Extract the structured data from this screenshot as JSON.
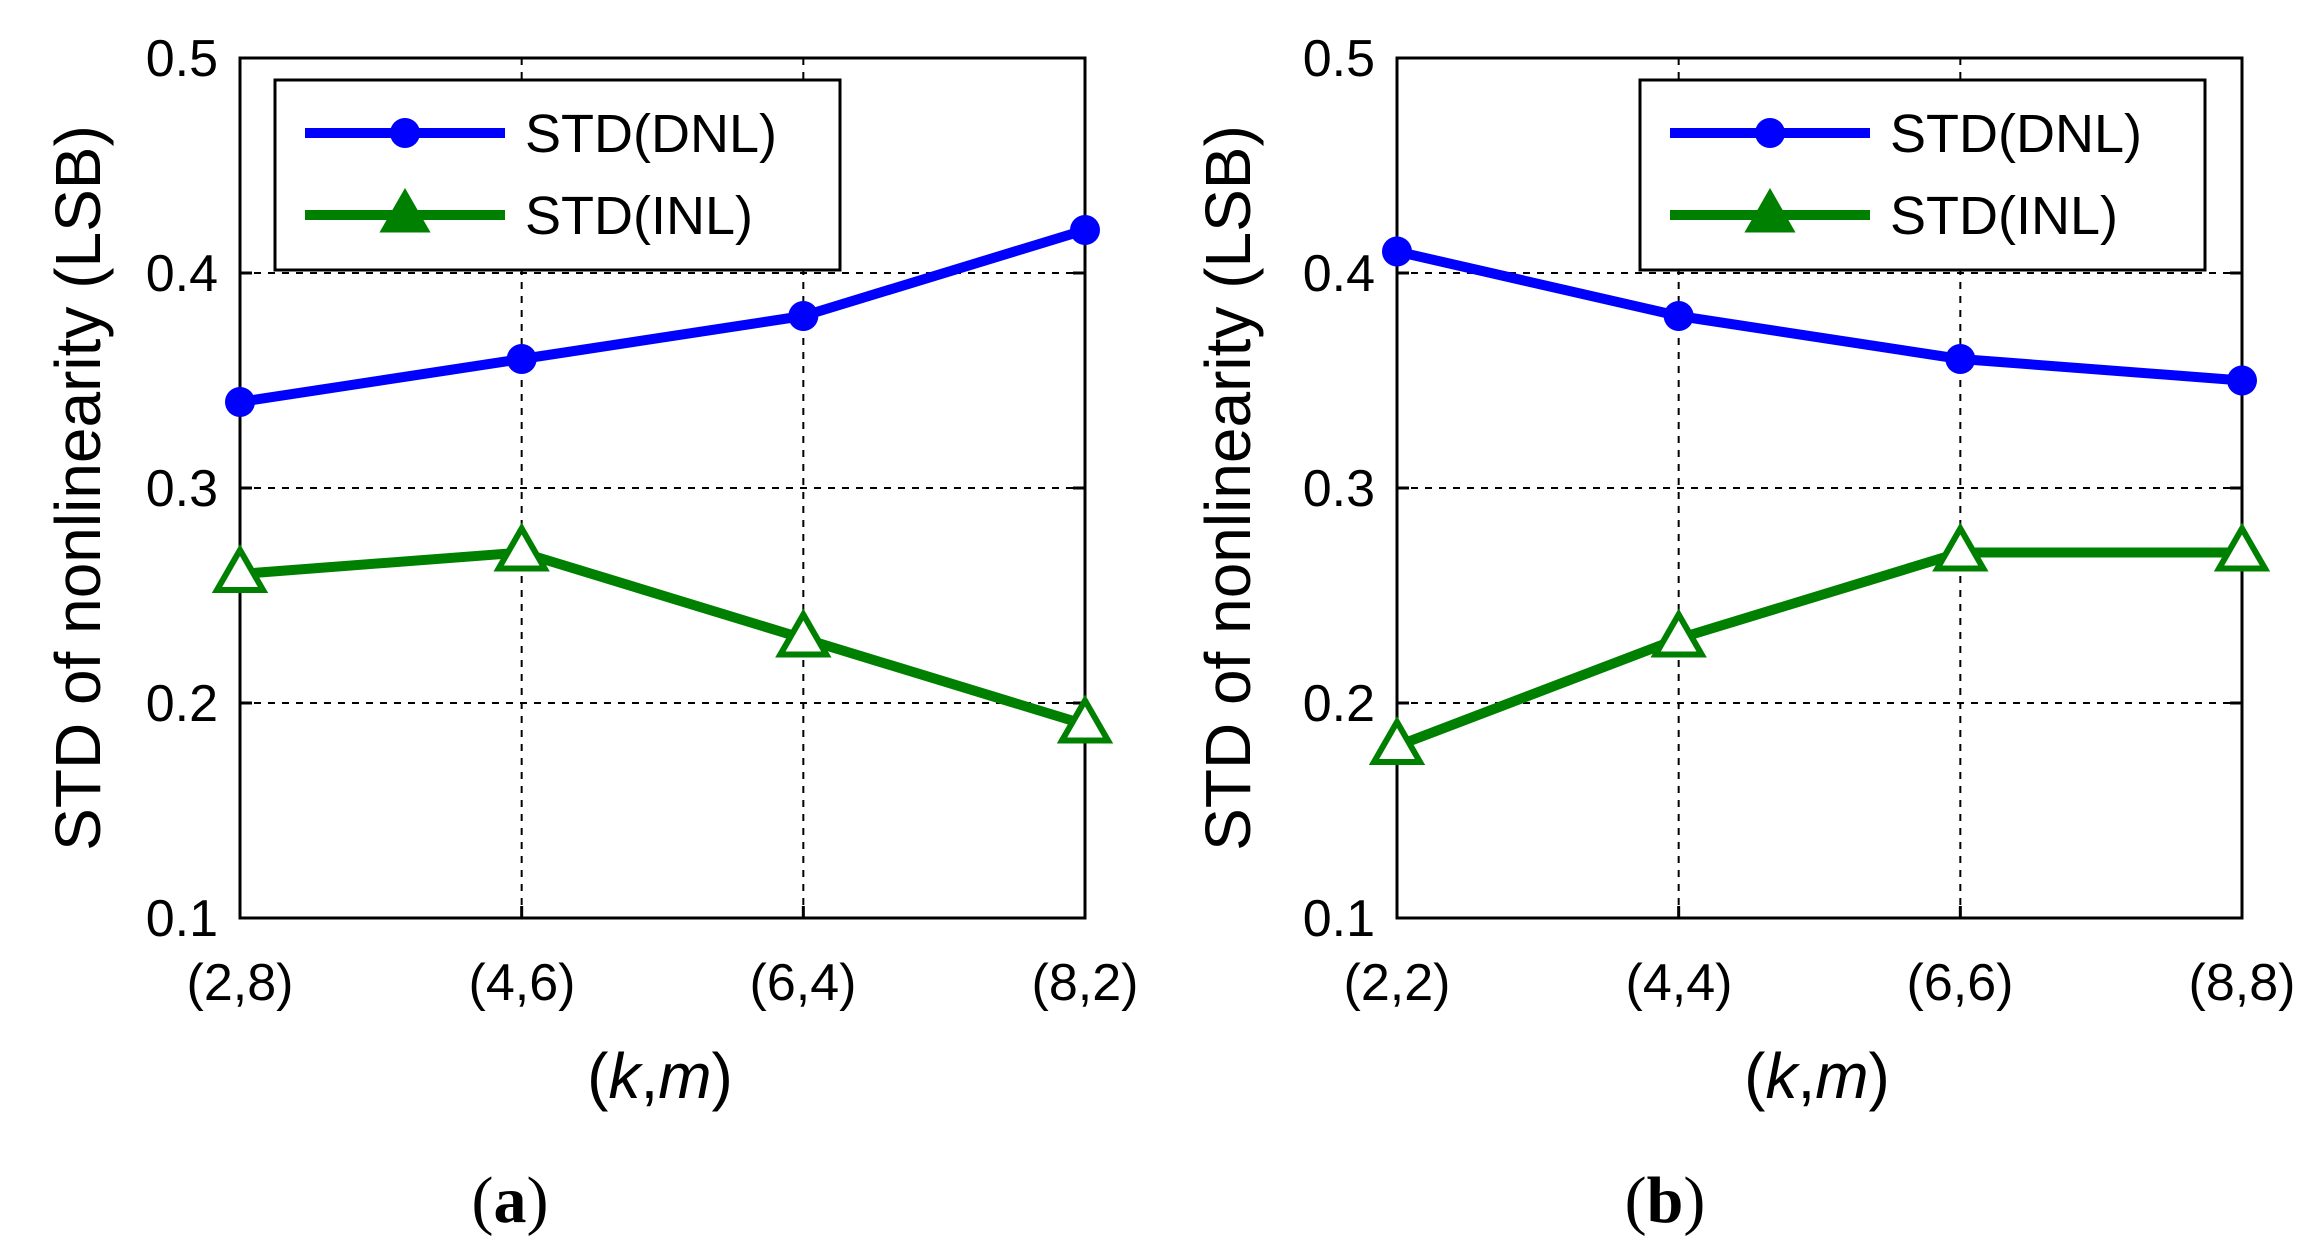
{
  "chart_data": [
    {
      "type": "line",
      "panel": "a",
      "categories": [
        "(2,8)",
        "(4,6)",
        "(6,4)",
        "(8,2)"
      ],
      "series": [
        {
          "name": "STD(DNL)",
          "values": [
            0.34,
            0.36,
            0.38,
            0.42
          ],
          "color": "#0000ff",
          "marker": "circle"
        },
        {
          "name": "STD(INL)",
          "values": [
            0.26,
            0.27,
            0.23,
            0.19
          ],
          "color": "#008000",
          "marker": "triangle"
        }
      ],
      "yticks": [
        "0.1",
        "0.2",
        "0.3",
        "0.4",
        "0.5"
      ],
      "ylim": [
        0.1,
        0.5
      ],
      "ylabel": "STD of nonlinearity  (LSB)",
      "xlabel_var1": "k",
      "xlabel_var2": "m",
      "grid": true,
      "legend_position": "top-left",
      "caption_open": "(",
      "caption_letter": "a",
      "caption_close": ")"
    },
    {
      "type": "line",
      "panel": "b",
      "categories": [
        "(2,2)",
        "(4,4)",
        "(6,6)",
        "(8,8)"
      ],
      "series": [
        {
          "name": "STD(DNL)",
          "values": [
            0.41,
            0.38,
            0.36,
            0.35
          ],
          "color": "#0000ff",
          "marker": "circle"
        },
        {
          "name": "STD(INL)",
          "values": [
            0.18,
            0.23,
            0.27,
            0.27
          ],
          "color": "#008000",
          "marker": "triangle"
        }
      ],
      "yticks": [
        "0.1",
        "0.2",
        "0.3",
        "0.4",
        "0.5"
      ],
      "ylim": [
        0.1,
        0.5
      ],
      "ylabel": "STD of nonlinearity  (LSB)",
      "xlabel_var1": "k",
      "xlabel_var2": "m",
      "grid": true,
      "legend_position": "top-right",
      "caption_open": "(",
      "caption_letter": "b",
      "caption_close": ")"
    }
  ]
}
